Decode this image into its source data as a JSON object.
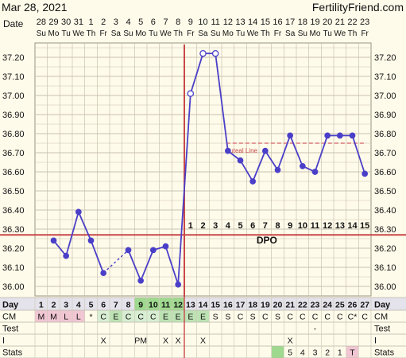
{
  "header": {
    "date_title": "Mar 28, 2021",
    "site": "FertilityFriend.com",
    "date_label": "Date"
  },
  "dates": [
    "28",
    "29",
    "30",
    "31",
    "1",
    "2",
    "3",
    "4",
    "5",
    "6",
    "7",
    "8",
    "9",
    "10",
    "11",
    "12",
    "13",
    "14",
    "15",
    "16",
    "17",
    "18",
    "19",
    "20",
    "21",
    "22",
    "23"
  ],
  "weekdays": [
    "Su",
    "Mo",
    "Tu",
    "We",
    "Th",
    "Fr",
    "Sa",
    "Su",
    "Mo",
    "Tu",
    "We",
    "Th",
    "Fr",
    "Sa",
    "Su",
    "Mo",
    "Tu",
    "We",
    "Th",
    "Fr",
    "Sa",
    "Su",
    "Mo",
    "Tu",
    "We",
    "Th",
    "Fr"
  ],
  "chart_data": {
    "type": "line",
    "x": [
      1,
      2,
      3,
      4,
      5,
      6,
      7,
      8,
      9,
      10,
      11,
      12,
      13,
      14,
      15,
      16,
      17,
      18,
      19,
      20,
      21,
      22,
      23,
      24,
      25,
      26,
      27
    ],
    "series": [
      {
        "values": [
          null,
          36.24,
          36.16,
          36.39,
          36.24,
          36.07,
          null,
          36.19,
          36.03,
          36.19,
          36.21,
          36.01,
          37.01,
          37.22,
          37.22,
          36.71,
          36.66,
          36.55,
          36.71,
          36.61,
          36.79,
          36.63,
          36.6,
          36.79,
          36.79,
          36.79,
          36.59
        ]
      }
    ],
    "y_ticks": [
      "37.20",
      "37.10",
      "37.00",
      "36.90",
      "36.80",
      "36.70",
      "36.60",
      "36.50",
      "36.40",
      "36.30",
      "36.20",
      "36.10",
      "36.00"
    ],
    "ylim": [
      35.95,
      37.275
    ],
    "coverline": 36.27,
    "luteal_line": {
      "label": "Luteal Line",
      "value": 36.75,
      "from_day": 16
    },
    "ovulation_day": 12,
    "dpo_label": "DPO",
    "dpo_numbers": [
      "1",
      "2",
      "3",
      "4",
      "5",
      "6",
      "7",
      "8",
      "9",
      "10",
      "11",
      "12",
      "13",
      "14",
      "15"
    ],
    "colors": {
      "line": "#4a3fc8",
      "coverline": "#c84848",
      "luteal": "#e08a8a",
      "grid": "#c8c2b0"
    }
  },
  "table": {
    "labels": [
      "Day",
      "CM",
      "Test",
      "I",
      "Stats"
    ],
    "day_numbers": [
      "1",
      "2",
      "3",
      "4",
      "5",
      "6",
      "7",
      "8",
      "9",
      "10",
      "11",
      "12",
      "13",
      "14",
      "15",
      "16",
      "17",
      "18",
      "19",
      "20",
      "21",
      "22",
      "23",
      "24",
      "25",
      "26",
      "27"
    ],
    "cm": [
      "M",
      "M",
      "L",
      "L",
      "*",
      "C",
      "E",
      "C",
      "C",
      "C",
      "E",
      "E",
      "E",
      "E",
      "S",
      "S",
      "C",
      "S",
      "C",
      "S",
      "C",
      "C",
      "C",
      "C",
      "C",
      "C*",
      "C"
    ],
    "cm_colors": [
      "#f1c6d3",
      "#f1c6d3",
      "#f1c6d3",
      "#f1c6d3",
      "",
      "#d8eed3",
      "#bde3b4",
      "#d8eed3",
      "#d8eed3",
      "#d8eed3",
      "#bde3b4",
      "#bde3b4",
      "#bde3b4",
      "#bde3b4",
      "",
      "",
      "",
      "",
      "",
      "",
      "",
      "",
      "",
      "",
      "",
      "",
      ""
    ],
    "day_colors": [
      "",
      "",
      "",
      "",
      "",
      "",
      "",
      "",
      "#9fd98f",
      "#9fd98f",
      "#9fd98f",
      "#9fd98f",
      "",
      "",
      "",
      "",
      "",
      "",
      "",
      "",
      "",
      "",
      "",
      "",
      "",
      "",
      ""
    ],
    "test": [
      "",
      "",
      "",
      "",
      "",
      "",
      "",
      "",
      "",
      "",
      "",
      "",
      "",
      "",
      "",
      "",
      "",
      "",
      "",
      "",
      "",
      "",
      "-",
      "",
      "",
      "",
      ""
    ],
    "intercourse": [
      "",
      "",
      "",
      "",
      "",
      "X",
      "",
      "",
      "PM",
      "",
      "X",
      "X",
      "",
      "X",
      "",
      "",
      "",
      "",
      "",
      "",
      "X",
      "",
      "",
      "",
      "",
      "",
      ""
    ],
    "stats": [
      "",
      "",
      "",
      "",
      "",
      "",
      "",
      "",
      "",
      "",
      "",
      "",
      "",
      "",
      "",
      "",
      "",
      "",
      "",
      "",
      "5",
      "4",
      "3",
      "2",
      "1",
      "T",
      ""
    ],
    "stats_colors": [
      "",
      "",
      "",
      "",
      "",
      "",
      "",
      "",
      "",
      "",
      "",
      "",
      "",
      "",
      "",
      "",
      "",
      "",
      "",
      "#9fd98f",
      "",
      "",
      "",
      "",
      "",
      "#f1c6d3",
      ""
    ]
  }
}
